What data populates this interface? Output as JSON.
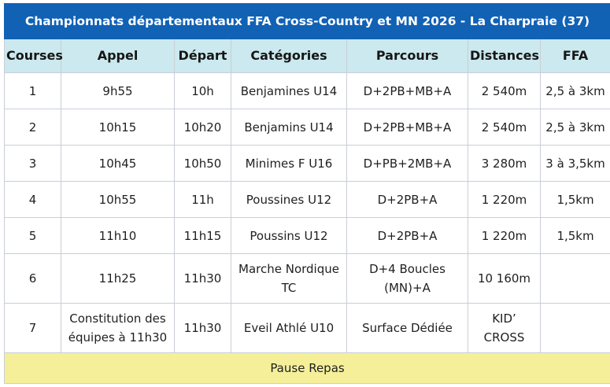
{
  "title": "Championnats départementaux FFA Cross-Country et MN 2026 - La Charpraie (37)",
  "columns": [
    "Courses",
    "Appel",
    "Départ",
    "Catégories",
    "Parcours",
    "Distances",
    "FFA"
  ],
  "rows": [
    [
      "1",
      "9h55",
      "10h",
      "Benjamines U14",
      "D+2PB+MB+A",
      "2 540m",
      "2,5 à 3km"
    ],
    [
      "2",
      "10h15",
      "10h20",
      "Benjamins U14",
      "D+2PB+MB+A",
      "2 540m",
      "2,5 à 3km"
    ],
    [
      "3",
      "10h45",
      "10h50",
      "Minimes F U16",
      "D+PB+2MB+A",
      "3 280m",
      "3 à 3,5km"
    ],
    [
      "4",
      "10h55",
      "11h",
      "Poussines U12",
      "D+2PB+A",
      "1 220m",
      "1,5km"
    ],
    [
      "5",
      "11h10",
      "11h15",
      "Poussins U12",
      "D+2PB+A",
      "1 220m",
      "1,5km"
    ],
    [
      "6",
      "11h25",
      "11h30",
      "Marche Nordique TC",
      "D+4 Boucles (MN)+A",
      "10 160m",
      ""
    ],
    [
      "7",
      "Constitution des équipes à 11h30",
      "11h30",
      "Eveil Athlé U10",
      "Surface Dédiée",
      "KID’ CROSS",
      ""
    ]
  ],
  "footer": "Pause Repas",
  "colors": {
    "title_bg": "#1161b5",
    "header_bg": "#cbe9ee",
    "footer_bg": "#f5ef9a",
    "border": "#c9ced6"
  }
}
